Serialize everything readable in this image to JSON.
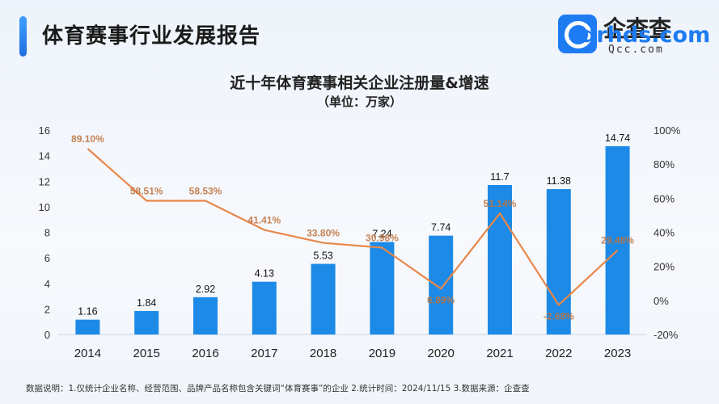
{
  "header": {
    "title": "体育赛事行业发展报告"
  },
  "logo": {
    "cn_text": "企查查",
    "en_text": "Qcc.com",
    "watermark": "drhds.com",
    "icon": "magnifier-q-icon",
    "brand_color": "#1d7cf2"
  },
  "chart_data": {
    "type": "bar",
    "title": "近十年体育赛事相关企业注册量&增速",
    "subtitle": "（单位：万家）",
    "categories": [
      "2014",
      "2015",
      "2016",
      "2017",
      "2018",
      "2019",
      "2020",
      "2021",
      "2022",
      "2023"
    ],
    "series": [
      {
        "type": "bar",
        "values": [
          1.16,
          1.84,
          2.92,
          4.13,
          5.53,
          7.24,
          7.74,
          11.7,
          11.38,
          14.74
        ],
        "labels": [
          "1.16",
          "1.84",
          "2.92",
          "4.13",
          "5.53",
          "7.24",
          "7.74",
          "11.7",
          "11.38",
          "14.74"
        ],
        "color": "#1c8ae6",
        "axis": "left"
      },
      {
        "type": "line",
        "values": [
          89.1,
          58.51,
          58.53,
          41.41,
          33.8,
          30.98,
          6.89,
          51.14,
          -2.68,
          29.48
        ],
        "labels": [
          "89.10%",
          "58.51%",
          "58.53%",
          "41.41%",
          "33.80%",
          "30.98%",
          "6.89%",
          "51.14%",
          "-2.68%",
          "29.48%"
        ],
        "color": "#e8874a",
        "axis": "right"
      }
    ],
    "y_left": {
      "min": 0,
      "max": 16,
      "ticks": [
        "0",
        "2",
        "4",
        "6",
        "8",
        "10",
        "12",
        "14",
        "16"
      ]
    },
    "y_right": {
      "min": -20,
      "max": 100,
      "ticks": [
        "-20%",
        "0%",
        "20%",
        "40%",
        "60%",
        "80%",
        "100%"
      ]
    },
    "grid": false,
    "legend": "none"
  },
  "footnote": "数据说明：1.仅统计企业名称、经营范围、品牌产品名称包含关键词“体育赛事”的企业   2.统计时间：2024/11/15   3.数据来源：企查查"
}
